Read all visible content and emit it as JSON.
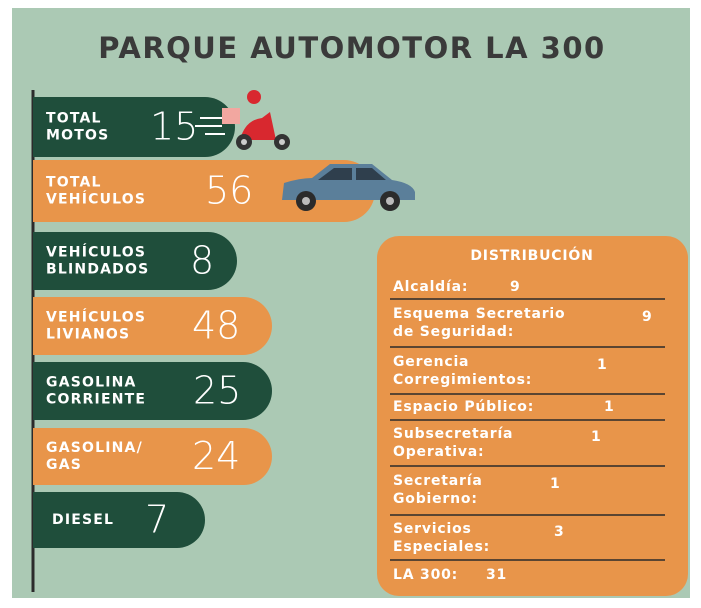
{
  "title": "PARQUE AUTOMOTOR LA 300",
  "items": [
    {
      "label": [
        "TOTAL",
        "MOTOS"
      ],
      "value": 15
    },
    {
      "label": [
        "TOTAL",
        "VEHÍCULOS"
      ],
      "value": 56
    },
    {
      "label": [
        "VEHÍCULOS",
        "BLINDADOS"
      ],
      "value": 8
    },
    {
      "label": [
        "VEHÍCULOS",
        "LIVIANOS"
      ],
      "value": 48
    },
    {
      "label": [
        "GASOLINA",
        "CORRIENTE"
      ],
      "value": 25
    },
    {
      "label": [
        "GASOLINA/",
        "GAS"
      ],
      "value": 24
    },
    {
      "label": [
        "DIESEL"
      ],
      "value": 7
    }
  ],
  "distribution": {
    "title": "DISTRIBUCIÓN",
    "rows": [
      {
        "label": [
          "Alcaldía:"
        ],
        "value": 9
      },
      {
        "label": [
          "Esquema Secretario",
          "de Seguridad:"
        ],
        "value": 9
      },
      {
        "label": [
          "Gerencia",
          "Corregimientos:"
        ],
        "value": 1
      },
      {
        "label": [
          "Espacio Público:"
        ],
        "value": 1
      },
      {
        "label": [
          "Subsecretaría",
          "Operativa:"
        ],
        "value": 1
      },
      {
        "label": [
          "Secretaría",
          "Gobierno:"
        ],
        "value": 1
      },
      {
        "label": [
          "Servicios",
          "Especiales:"
        ],
        "value": 3
      },
      {
        "label": [
          "LA 300:"
        ],
        "value": 31
      }
    ]
  }
}
